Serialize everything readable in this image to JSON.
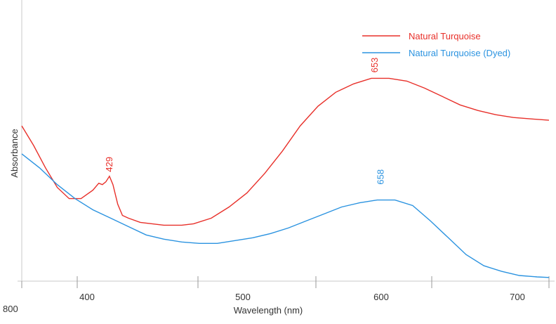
{
  "chart_data": {
    "type": "line",
    "title": "",
    "xlabel": "Wavelength (nm)",
    "ylabel": "Absorbance",
    "x_tick_labels": [
      "800",
      "400",
      "500",
      "600",
      "700"
    ],
    "xlim": [
      355,
      800
    ],
    "ylim": [
      0,
      1
    ],
    "grid": false,
    "legend_position": "top-right",
    "series": [
      {
        "name": "Natural Turquoise",
        "color": "#e8302a",
        "points": [
          [
            355,
            0.55
          ],
          [
            365,
            0.48
          ],
          [
            375,
            0.4
          ],
          [
            385,
            0.33
          ],
          [
            395,
            0.29
          ],
          [
            405,
            0.29
          ],
          [
            415,
            0.32
          ],
          [
            420,
            0.345
          ],
          [
            423,
            0.34
          ],
          [
            426,
            0.35
          ],
          [
            429,
            0.37
          ],
          [
            432,
            0.34
          ],
          [
            436,
            0.27
          ],
          [
            440,
            0.23
          ],
          [
            445,
            0.22
          ],
          [
            455,
            0.205
          ],
          [
            465,
            0.2
          ],
          [
            475,
            0.195
          ],
          [
            490,
            0.195
          ],
          [
            500,
            0.2
          ],
          [
            515,
            0.22
          ],
          [
            530,
            0.26
          ],
          [
            545,
            0.31
          ],
          [
            560,
            0.38
          ],
          [
            575,
            0.46
          ],
          [
            590,
            0.55
          ],
          [
            605,
            0.62
          ],
          [
            620,
            0.67
          ],
          [
            635,
            0.7
          ],
          [
            650,
            0.72
          ],
          [
            665,
            0.72
          ],
          [
            680,
            0.71
          ],
          [
            695,
            0.685
          ],
          [
            710,
            0.655
          ],
          [
            725,
            0.625
          ],
          [
            740,
            0.605
          ],
          [
            755,
            0.59
          ],
          [
            770,
            0.58
          ],
          [
            785,
            0.575
          ],
          [
            800,
            0.57
          ]
        ],
        "peak_label": {
          "x": 429,
          "text": "429"
        },
        "peak_label_2": {
          "x": 653,
          "text": "653"
        }
      },
      {
        "name": "Natural Turquoise (Dyed)",
        "color": "#2b93e0",
        "points": [
          [
            355,
            0.45
          ],
          [
            370,
            0.4
          ],
          [
            385,
            0.34
          ],
          [
            400,
            0.29
          ],
          [
            415,
            0.25
          ],
          [
            430,
            0.22
          ],
          [
            445,
            0.19
          ],
          [
            460,
            0.16
          ],
          [
            475,
            0.145
          ],
          [
            490,
            0.135
          ],
          [
            505,
            0.13
          ],
          [
            520,
            0.13
          ],
          [
            535,
            0.14
          ],
          [
            550,
            0.15
          ],
          [
            565,
            0.165
          ],
          [
            580,
            0.185
          ],
          [
            595,
            0.21
          ],
          [
            610,
            0.235
          ],
          [
            625,
            0.26
          ],
          [
            640,
            0.275
          ],
          [
            655,
            0.285
          ],
          [
            670,
            0.285
          ],
          [
            685,
            0.265
          ],
          [
            700,
            0.21
          ],
          [
            715,
            0.15
          ],
          [
            730,
            0.09
          ],
          [
            745,
            0.05
          ],
          [
            760,
            0.03
          ],
          [
            775,
            0.015
          ],
          [
            790,
            0.01
          ],
          [
            800,
            0.008
          ]
        ],
        "peak_label": {
          "x": 658,
          "text": "658"
        }
      }
    ]
  }
}
